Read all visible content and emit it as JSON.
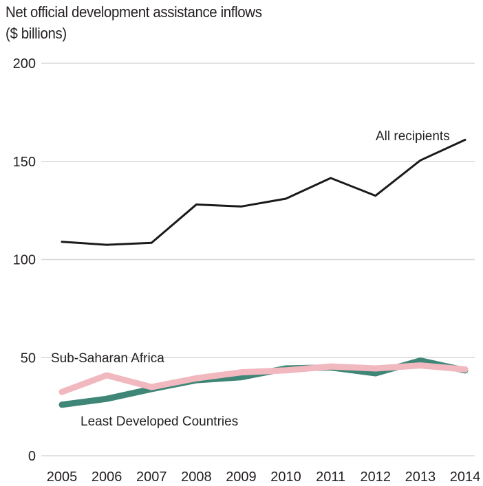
{
  "chart_data": {
    "type": "line",
    "title": "Net official development assistance inflows",
    "subtitle": "($ billions)",
    "x": [
      "2005",
      "2006",
      "2007",
      "2008",
      "2009",
      "2010",
      "2011",
      "2012",
      "2013",
      "2014"
    ],
    "y_ticks": [
      "0",
      "50",
      "100",
      "150",
      "200"
    ],
    "ylim": [
      0,
      200
    ],
    "grid": true,
    "series": [
      {
        "name": "All recipients",
        "values": [
          109,
          107.5,
          108.5,
          128,
          127,
          131,
          141.5,
          132.5,
          150.5,
          161
        ],
        "color": "#1a1a1a"
      },
      {
        "name": "Least Developed Countries",
        "values": [
          26,
          29,
          34,
          38.5,
          40,
          44.5,
          45,
          42,
          48.5,
          43.5
        ],
        "color": "#3f8677"
      },
      {
        "name": "Sub-Saharan Africa",
        "values": [
          32.5,
          41,
          35,
          39.5,
          42.5,
          43.5,
          45.5,
          44.5,
          46,
          44
        ],
        "color": "#f2b8c0"
      }
    ]
  }
}
